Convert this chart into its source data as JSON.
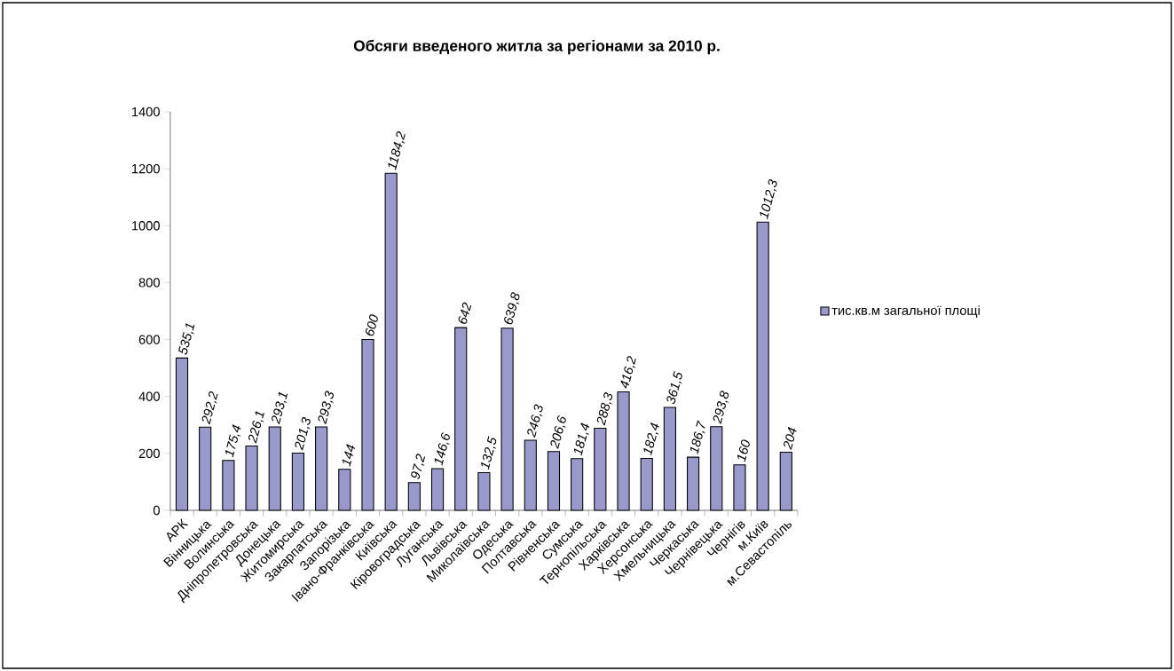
{
  "chart_data": {
    "type": "bar",
    "title": "Обсяги введеного житла за регіонами за 2010 р.",
    "categories": [
      "АРК",
      "Вінницька",
      "Волинська",
      "Дніпропетровська",
      "Донецька",
      "Житомирська",
      "Закарпатська",
      "Запорізька",
      "Івано-Франківська",
      "Київська",
      "Кіровоградська",
      "Луганська",
      "Львівська",
      "Миколаївська",
      "Одеська",
      "Полтавська",
      "Рівненська",
      "Сумська",
      "Тернопільська",
      "Харківська",
      "Херсонська",
      "Хмельницька",
      "Черкаська",
      "Чернівецька",
      "Чернігів",
      "м.Київ",
      "м.Севастопіль"
    ],
    "series": [
      {
        "name": "тис.кв.м загальної площі",
        "color": "#9999cc",
        "values": [
          535.1,
          292.2,
          175.4,
          226.1,
          293.1,
          201.3,
          293.3,
          144,
          600,
          1184.2,
          97.2,
          146.6,
          642,
          132.5,
          639.8,
          246.3,
          206.6,
          181.4,
          288.3,
          416.2,
          182.4,
          361.5,
          186.7,
          293.8,
          160,
          1012.3,
          204
        ],
        "value_labels": [
          "535,1",
          "292,2",
          "175,4",
          "226,1",
          "293,1",
          "201,3",
          "293,3",
          "144",
          "600",
          "1184,2",
          "97,2",
          "146,6",
          "642",
          "132,5",
          "639,8",
          "246,3",
          "206,6",
          "181,4",
          "288,3",
          "416,2",
          "182,4",
          "361,5",
          "186,7",
          "293,8",
          "160",
          "1012,3",
          "204"
        ]
      }
    ],
    "ylim": [
      0,
      1400
    ],
    "yticks": [
      0,
      200,
      400,
      600,
      800,
      1000,
      1200,
      1400
    ],
    "grid": false,
    "legend": "right"
  }
}
